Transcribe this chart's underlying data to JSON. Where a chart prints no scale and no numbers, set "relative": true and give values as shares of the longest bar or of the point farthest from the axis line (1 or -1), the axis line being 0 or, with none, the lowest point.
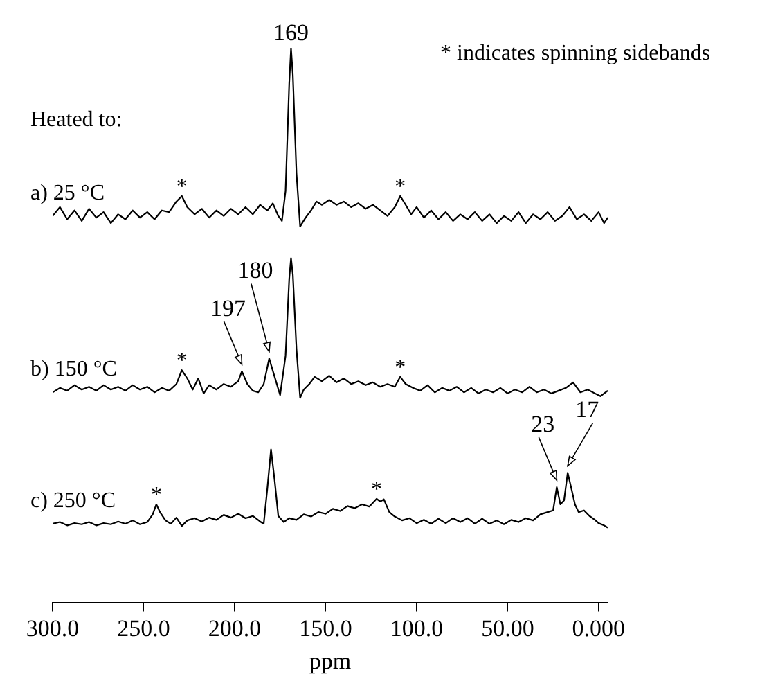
{
  "chart_data": {
    "type": "line",
    "relative": true,
    "xlim": [
      300,
      -5
    ],
    "xlabel": "ppm",
    "grid": false,
    "legend": false,
    "xticks": [
      {
        "value": 300,
        "label": "300.0"
      },
      {
        "value": 250,
        "label": "250.0"
      },
      {
        "value": 200,
        "label": "200.0"
      },
      {
        "value": 150,
        "label": "150.0"
      },
      {
        "value": 100,
        "label": "100.0"
      },
      {
        "value": 50,
        "label": "50.00"
      },
      {
        "value": 0,
        "label": "0.000"
      }
    ],
    "annotations": [
      "* indicates spinning sidebands",
      "Heated to:",
      {
        "text": "169",
        "x": 169,
        "y": 1
      },
      {
        "text": "*",
        "x": 229,
        "y": 0.734
      },
      {
        "text": "*",
        "x": 109,
        "y": 0.734
      },
      {
        "text": "197",
        "x": 196,
        "y": 0.418
      },
      {
        "text": "180",
        "x": 181,
        "y": 0.441
      },
      {
        "text": "*",
        "x": 229,
        "y": 0.42
      },
      {
        "text": "*",
        "x": 109,
        "y": 0.408
      },
      {
        "text": "23",
        "x": 23,
        "y": 0.209
      },
      {
        "text": "17",
        "x": 17,
        "y": 0.235
      },
      {
        "text": "*",
        "x": 243,
        "y": 0.178
      },
      {
        "text": "*",
        "x": 122,
        "y": 0.188
      }
    ],
    "series": [
      {
        "name": "a) 25 °C",
        "color": "#000000",
        "x": [
          300,
          296,
          292,
          288,
          284,
          280,
          276,
          272,
          268,
          264,
          260,
          256,
          252,
          248,
          244,
          240,
          236,
          232,
          229,
          226,
          222,
          218,
          214,
          210,
          206,
          202,
          198,
          194,
          190,
          186,
          182,
          179,
          176,
          174,
          172,
          170,
          169,
          168,
          166,
          164,
          161,
          158,
          155,
          152,
          148,
          144,
          140,
          136,
          132,
          128,
          124,
          120,
          116,
          112,
          109,
          106,
          103,
          100,
          96,
          92,
          88,
          84,
          80,
          76,
          72,
          68,
          64,
          60,
          56,
          52,
          48,
          44,
          40,
          36,
          32,
          28,
          24,
          20,
          16,
          12,
          8,
          4,
          0,
          -3,
          -5
        ],
        "values": [
          0.698,
          0.714,
          0.692,
          0.708,
          0.689,
          0.711,
          0.695,
          0.705,
          0.685,
          0.701,
          0.692,
          0.708,
          0.695,
          0.705,
          0.692,
          0.708,
          0.705,
          0.724,
          0.734,
          0.714,
          0.701,
          0.711,
          0.695,
          0.708,
          0.698,
          0.711,
          0.701,
          0.714,
          0.701,
          0.718,
          0.708,
          0.721,
          0.698,
          0.689,
          0.743,
          0.936,
          1,
          0.952,
          0.775,
          0.679,
          0.695,
          0.708,
          0.724,
          0.718,
          0.727,
          0.718,
          0.724,
          0.714,
          0.721,
          0.711,
          0.718,
          0.708,
          0.698,
          0.714,
          0.734,
          0.718,
          0.701,
          0.714,
          0.695,
          0.708,
          0.692,
          0.705,
          0.689,
          0.701,
          0.692,
          0.705,
          0.689,
          0.701,
          0.685,
          0.698,
          0.689,
          0.705,
          0.685,
          0.701,
          0.692,
          0.705,
          0.689,
          0.698,
          0.714,
          0.692,
          0.701,
          0.689,
          0.705,
          0.685,
          0.695
        ]
      },
      {
        "name": "b) 150 °C",
        "color": "#000000",
        "x": [
          300,
          296,
          292,
          288,
          284,
          280,
          276,
          272,
          268,
          264,
          260,
          256,
          252,
          248,
          244,
          240,
          236,
          232,
          229,
          226,
          223,
          220,
          217,
          214,
          210,
          206,
          202,
          198,
          196,
          193,
          190,
          187,
          184,
          181,
          178,
          175,
          172,
          170,
          169,
          168,
          166,
          164,
          162,
          159,
          156,
          152,
          148,
          144,
          140,
          136,
          132,
          128,
          124,
          120,
          116,
          112,
          109,
          106,
          102,
          98,
          94,
          90,
          86,
          82,
          78,
          74,
          70,
          66,
          62,
          58,
          54,
          50,
          46,
          42,
          38,
          34,
          30,
          26,
          22,
          18,
          14,
          10,
          6,
          2,
          -1,
          -5
        ],
        "values": [
          0.38,
          0.388,
          0.383,
          0.393,
          0.385,
          0.39,
          0.383,
          0.393,
          0.385,
          0.39,
          0.383,
          0.393,
          0.385,
          0.39,
          0.38,
          0.388,
          0.383,
          0.395,
          0.42,
          0.405,
          0.385,
          0.405,
          0.378,
          0.393,
          0.385,
          0.395,
          0.39,
          0.4,
          0.418,
          0.395,
          0.383,
          0.38,
          0.395,
          0.441,
          0.408,
          0.375,
          0.446,
          0.584,
          0.622,
          0.592,
          0.458,
          0.37,
          0.385,
          0.395,
          0.408,
          0.4,
          0.41,
          0.398,
          0.405,
          0.395,
          0.4,
          0.393,
          0.398,
          0.39,
          0.395,
          0.39,
          0.408,
          0.395,
          0.388,
          0.383,
          0.393,
          0.38,
          0.388,
          0.383,
          0.39,
          0.38,
          0.388,
          0.378,
          0.385,
          0.38,
          0.388,
          0.378,
          0.385,
          0.38,
          0.39,
          0.38,
          0.385,
          0.378,
          0.383,
          0.388,
          0.398,
          0.38,
          0.385,
          0.378,
          0.373,
          0.383
        ]
      },
      {
        "name": "c) 250 °C",
        "color": "#000000",
        "x": [
          300,
          296,
          292,
          288,
          284,
          280,
          276,
          272,
          268,
          264,
          260,
          256,
          252,
          248,
          245,
          243,
          241,
          238,
          235,
          232,
          229,
          226,
          222,
          218,
          214,
          210,
          206,
          202,
          198,
          194,
          190,
          186,
          184,
          182,
          180,
          178,
          176,
          173,
          170,
          166,
          162,
          158,
          154,
          150,
          146,
          142,
          138,
          134,
          130,
          126,
          122,
          120,
          118,
          115,
          112,
          108,
          104,
          100,
          96,
          92,
          88,
          84,
          80,
          76,
          72,
          68,
          64,
          60,
          56,
          52,
          48,
          44,
          40,
          36,
          32,
          28,
          25,
          23,
          21,
          19,
          17,
          15,
          13,
          11,
          8,
          5,
          2,
          0,
          -3,
          -5
        ],
        "values": [
          0.143,
          0.146,
          0.14,
          0.144,
          0.142,
          0.146,
          0.14,
          0.144,
          0.142,
          0.147,
          0.143,
          0.149,
          0.142,
          0.146,
          0.16,
          0.178,
          0.164,
          0.149,
          0.143,
          0.154,
          0.139,
          0.149,
          0.153,
          0.147,
          0.154,
          0.15,
          0.159,
          0.154,
          0.161,
          0.153,
          0.157,
          0.147,
          0.143,
          0.207,
          0.277,
          0.221,
          0.157,
          0.146,
          0.153,
          0.15,
          0.16,
          0.156,
          0.164,
          0.161,
          0.17,
          0.166,
          0.175,
          0.171,
          0.178,
          0.174,
          0.188,
          0.183,
          0.187,
          0.164,
          0.156,
          0.149,
          0.153,
          0.144,
          0.15,
          0.143,
          0.152,
          0.144,
          0.153,
          0.146,
          0.153,
          0.143,
          0.152,
          0.143,
          0.149,
          0.142,
          0.15,
          0.146,
          0.153,
          0.149,
          0.16,
          0.164,
          0.167,
          0.209,
          0.178,
          0.185,
          0.235,
          0.207,
          0.178,
          0.164,
          0.167,
          0.157,
          0.15,
          0.144,
          0.14,
          0.136
        ]
      }
    ]
  }
}
